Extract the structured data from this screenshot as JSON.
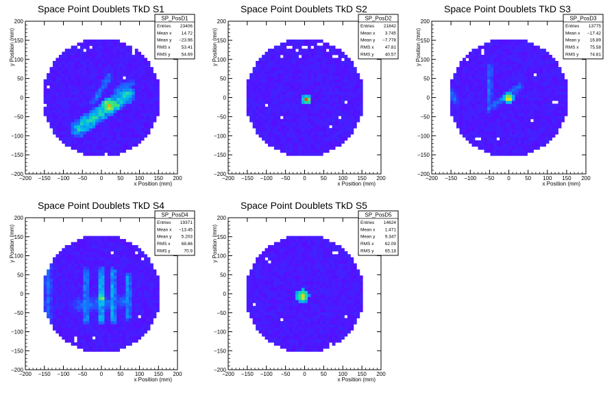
{
  "chart_data": [
    {
      "type": "heatmap",
      "title": "Space Point Doublets TkD S1",
      "xlabel": "x Position (mm)",
      "ylabel": "y Position (mm)",
      "xlim": [
        -200,
        200
      ],
      "ylim": [
        -200,
        200
      ],
      "xticks": [
        -200,
        -150,
        -100,
        -50,
        0,
        50,
        100,
        150,
        200
      ],
      "yticks": [
        -200,
        -150,
        -100,
        -50,
        0,
        50,
        100,
        150,
        200
      ],
      "stats": {
        "name": "SP_PosD1",
        "rows": [
          [
            "Entries",
            "23406"
          ],
          [
            "Mean x",
            "14.72"
          ],
          [
            "Mean y",
            "-23.96"
          ],
          [
            "RMS x",
            "53.41"
          ],
          [
            "RMS y",
            "54.69"
          ]
        ]
      },
      "fill_radius": 155,
      "features": [
        {
          "kind": "band",
          "from": [
            -60,
            -80
          ],
          "to": [
            70,
            10
          ],
          "width": 22,
          "level": 0.55
        },
        {
          "kind": "band",
          "from": [
            -20,
            -10
          ],
          "to": [
            20,
            55
          ],
          "width": 10,
          "level": 0.35
        },
        {
          "kind": "band",
          "from": [
            40,
            20
          ],
          "to": [
            80,
            40
          ],
          "width": 10,
          "level": 0.35
        },
        {
          "kind": "spot",
          "at": [
            20,
            -20
          ],
          "radius": 20,
          "level": 0.95
        },
        {
          "kind": "spot",
          "at": [
            40,
            -20
          ],
          "radius": 12,
          "level": 0.85
        }
      ],
      "holes": [
        [
          -60,
          135
        ],
        [
          -45,
          125
        ],
        [
          85,
          120
        ],
        [
          60,
          50
        ],
        [
          -150,
          -20
        ],
        [
          -140,
          30
        ],
        [
          -110,
          -150
        ],
        [
          15,
          -150
        ],
        [
          70,
          -140
        ],
        [
          -30,
          130
        ]
      ]
    },
    {
      "type": "heatmap",
      "title": "Space Point Doublets TkD S2",
      "xlabel": "x Position (mm)",
      "ylabel": "y Position (mm)",
      "xlim": [
        -200,
        200
      ],
      "ylim": [
        -200,
        200
      ],
      "xticks": [
        -200,
        -150,
        -100,
        -50,
        0,
        50,
        100,
        150,
        200
      ],
      "yticks": [
        -200,
        -150,
        -100,
        -50,
        0,
        50,
        100,
        150,
        200
      ],
      "stats": {
        "name": "SP_PosD2",
        "rows": [
          [
            "Entries",
            "21842"
          ],
          [
            "Mean x",
            "3.745"
          ],
          [
            "Mean y",
            "-7.778"
          ],
          [
            "RMS x",
            "47.81"
          ],
          [
            "RMS y",
            "40.57"
          ]
        ]
      },
      "fill_radius": 155,
      "features": [
        {
          "kind": "spot",
          "at": [
            5,
            -5
          ],
          "radius": 14,
          "level": 0.95
        }
      ],
      "holes": [
        [
          -40,
          130
        ],
        [
          -20,
          125
        ],
        [
          0,
          135
        ],
        [
          20,
          130
        ],
        [
          40,
          140
        ],
        [
          60,
          125
        ],
        [
          -60,
          110
        ],
        [
          80,
          110
        ],
        [
          100,
          100
        ],
        [
          -10,
          110
        ],
        [
          -100,
          -20
        ],
        [
          90,
          -50
        ],
        [
          -60,
          -55
        ],
        [
          65,
          -75
        ],
        [
          110,
          -10
        ]
      ]
    },
    {
      "type": "heatmap",
      "title": "Space Point Doublets TkD S3",
      "xlabel": "x Position (mm)",
      "ylabel": "y Position (mm)",
      "xlim": [
        -200,
        200
      ],
      "ylim": [
        -200,
        200
      ],
      "xticks": [
        -200,
        -150,
        -100,
        -50,
        0,
        50,
        100,
        150,
        200
      ],
      "yticks": [
        -200,
        -150,
        -100,
        -50,
        0,
        50,
        100,
        150,
        200
      ],
      "stats": {
        "name": "SP_PosD3",
        "rows": [
          [
            "Entries",
            "13775"
          ],
          [
            "Mean x",
            "-17.42"
          ],
          [
            "Mean y",
            "16.89"
          ],
          [
            "RMS x",
            "75.58"
          ],
          [
            "RMS y",
            "74.81"
          ]
        ]
      },
      "fill_radius": 155,
      "features": [
        {
          "kind": "band",
          "from": [
            -50,
            80
          ],
          "to": [
            -50,
            -30
          ],
          "width": 8,
          "level": 0.35
        },
        {
          "kind": "band",
          "from": [
            -40,
            -20
          ],
          "to": [
            30,
            30
          ],
          "width": 10,
          "level": 0.35
        },
        {
          "kind": "band",
          "from": [
            -150,
            20
          ],
          "to": [
            -140,
            -10
          ],
          "width": 10,
          "level": 0.3
        },
        {
          "kind": "spot",
          "at": [
            0,
            0
          ],
          "radius": 14,
          "level": 0.95
        }
      ],
      "holes": [
        [
          -110,
          100
        ],
        [
          -70,
          120
        ],
        [
          70,
          60
        ],
        [
          120,
          -10
        ],
        [
          -80,
          -110
        ],
        [
          -30,
          -110
        ],
        [
          60,
          -60
        ]
      ]
    },
    {
      "type": "heatmap",
      "title": "Space Point Doublets TkD S4",
      "xlabel": "x Position (mm)",
      "ylabel": "y Position (mm)",
      "xlim": [
        -200,
        200
      ],
      "ylim": [
        -200,
        200
      ],
      "xticks": [
        -200,
        -150,
        -100,
        -50,
        0,
        50,
        100,
        150,
        200
      ],
      "yticks": [
        -200,
        -150,
        -100,
        -50,
        0,
        50,
        100,
        150,
        200
      ],
      "stats": {
        "name": "SP_PosD4",
        "rows": [
          [
            "Entries",
            "19371"
          ],
          [
            "Mean x",
            "-13.45"
          ],
          [
            "Mean y",
            "5.203"
          ],
          [
            "RMS x",
            "68.86"
          ],
          [
            "RMS y",
            "70.9"
          ]
        ]
      },
      "fill_radius": 155,
      "features": [
        {
          "kind": "band",
          "from": [
            -140,
            80
          ],
          "to": [
            -140,
            -80
          ],
          "width": 12,
          "level": 0.3
        },
        {
          "kind": "band",
          "from": [
            -40,
            60
          ],
          "to": [
            -40,
            -70
          ],
          "width": 10,
          "level": 0.4
        },
        {
          "kind": "band",
          "from": [
            0,
            60
          ],
          "to": [
            0,
            -70
          ],
          "width": 10,
          "level": 0.5
        },
        {
          "kind": "band",
          "from": [
            30,
            60
          ],
          "to": [
            30,
            -70
          ],
          "width": 10,
          "level": 0.45
        },
        {
          "kind": "band",
          "from": [
            70,
            50
          ],
          "to": [
            70,
            -60
          ],
          "width": 10,
          "level": 0.4
        },
        {
          "kind": "band",
          "from": [
            -60,
            -30
          ],
          "to": [
            60,
            -20
          ],
          "width": 20,
          "level": 0.3
        },
        {
          "kind": "spot",
          "at": [
            0,
            -10
          ],
          "radius": 12,
          "level": 0.9
        }
      ],
      "holes": [
        [
          -130,
          100
        ],
        [
          30,
          105
        ],
        [
          90,
          110
        ],
        [
          110,
          90
        ],
        [
          -100,
          -150
        ],
        [
          -70,
          -120
        ],
        [
          -20,
          -115
        ],
        [
          100,
          -60
        ]
      ]
    },
    {
      "type": "heatmap",
      "title": "Space Point Doublets TkD S5",
      "xlabel": "x Position (mm)",
      "ylabel": "y Position (mm)",
      "xlim": [
        -200,
        200
      ],
      "ylim": [
        -200,
        200
      ],
      "xticks": [
        -200,
        -150,
        -100,
        -50,
        0,
        50,
        100,
        150,
        200
      ],
      "yticks": [
        -200,
        -150,
        -100,
        -50,
        0,
        50,
        100,
        150,
        200
      ],
      "stats": {
        "name": "SP_PosD5",
        "rows": [
          [
            "Entries",
            "14624"
          ],
          [
            "Mean x",
            "1.471"
          ],
          [
            "Mean y",
            "9.347"
          ],
          [
            "RMS x",
            "62.09"
          ],
          [
            "RMS y",
            "65.18"
          ]
        ]
      },
      "fill_radius": 155,
      "features": [
        {
          "kind": "spot",
          "at": [
            -5,
            -5
          ],
          "radius": 18,
          "level": 0.95
        }
      ],
      "holes": [
        [
          -100,
          95
        ],
        [
          -90,
          85
        ],
        [
          -135,
          -30
        ],
        [
          -60,
          -70
        ],
        [
          110,
          -60
        ],
        [
          70,
          -130
        ],
        [
          80,
          110
        ]
      ]
    }
  ]
}
